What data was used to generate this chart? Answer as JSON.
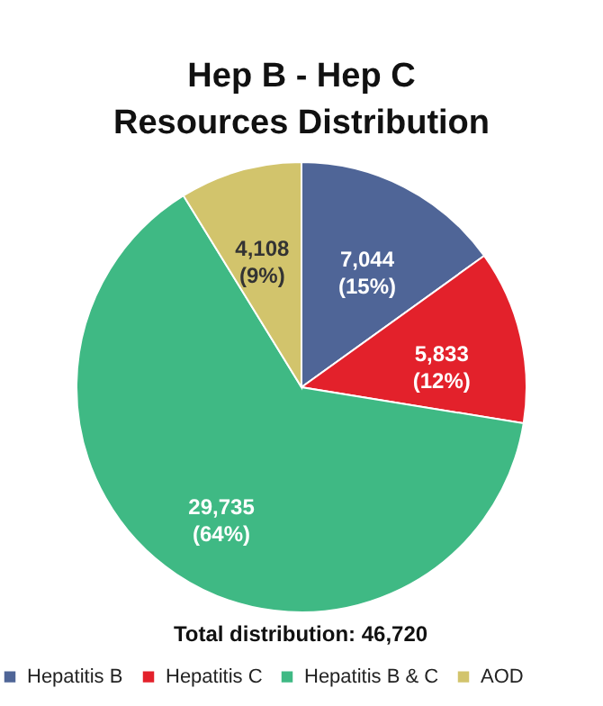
{
  "chart_data": {
    "type": "pie",
    "title": "Hep B - Hep C\nResources Distribution",
    "categories": [
      "Hepatitis B",
      "Hepatitis C",
      "Hepatitis B & C",
      "AOD"
    ],
    "values": [
      7044,
      5833,
      29735,
      4108
    ],
    "colors": [
      "#4f6597",
      "#e3212b",
      "#3fb984",
      "#d2c46c"
    ],
    "value_labels": [
      "7,044\n(15%)",
      "5,833\n(12%)",
      "29,735\n(64%)",
      "4,108\n(9%)"
    ],
    "annotations": [
      "Total distribution: 46,720"
    ],
    "legend": "bottom"
  }
}
